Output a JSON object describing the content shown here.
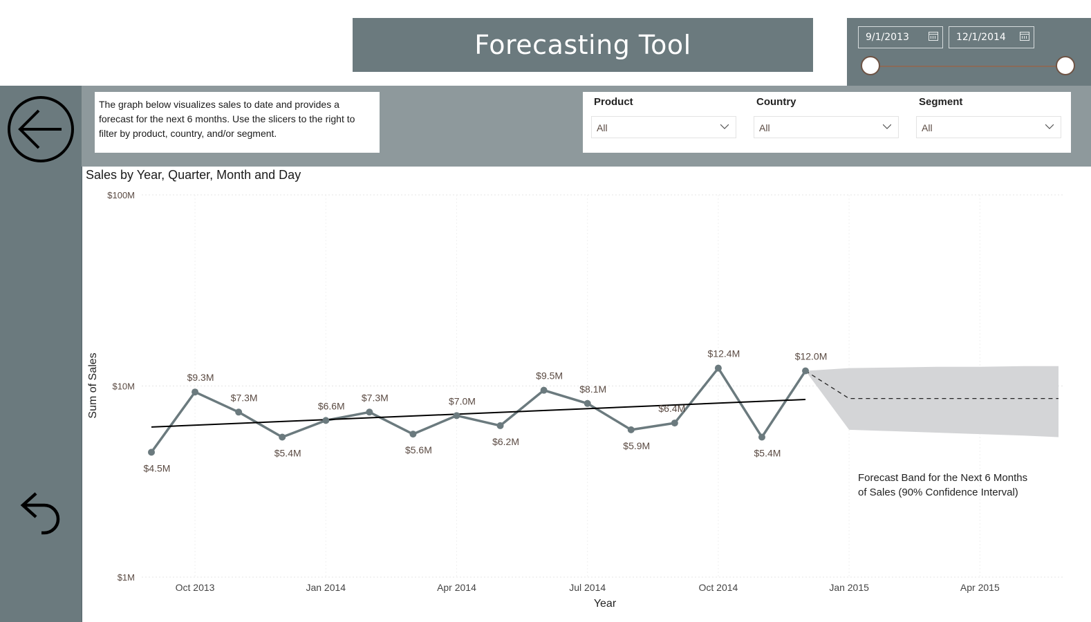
{
  "header": {
    "title": "Forecasting Tool"
  },
  "date_slicer": {
    "start_date": "9/1/2013",
    "end_date": "12/1/2014"
  },
  "description": "The graph below visualizes sales to date and provides a forecast for the next 6 months. Use the slicers to the right to filter by product, country, and/or segment.",
  "slicers": [
    {
      "label": "Product",
      "value": "All"
    },
    {
      "label": "Country",
      "value": "All"
    },
    {
      "label": "Segment",
      "value": "All"
    }
  ],
  "nav": {
    "back_icon": "circle-arrow-left-icon",
    "undo_icon": "undo-arrow-icon"
  },
  "colors": {
    "header_bg": "#6b7a7e",
    "band_bg": "#8e999c",
    "line": "#6b7a7e",
    "trend": "#000000",
    "forecast_band": "#d4d5d7",
    "label_text": "#5a4a42"
  },
  "chart_data": {
    "type": "line",
    "title": "Sales by Year, Quarter, Month and Day",
    "xlabel": "Year",
    "ylabel": "Sum of Sales",
    "yscale": "log",
    "ylim": [
      1000000,
      100000000
    ],
    "y_ticks": [
      "$100M",
      "$10M",
      "$1M"
    ],
    "x_ticks": [
      "Oct 2013",
      "Jan 2014",
      "Apr 2014",
      "Jul 2014",
      "Oct 2014",
      "Jan 2015",
      "Apr 2015"
    ],
    "grid": true,
    "legend": null,
    "series": [
      {
        "name": "Sum of Sales",
        "x": [
          "Sep 2013",
          "Oct 2013",
          "Nov 2013",
          "Dec 2013",
          "Jan 2014",
          "Feb 2014",
          "Mar 2014",
          "Apr 2014",
          "May 2014",
          "Jun 2014",
          "Jul 2014",
          "Aug 2014",
          "Sep 2014",
          "Oct 2014",
          "Nov 2014",
          "Dec 2014"
        ],
        "values": [
          4.5,
          9.3,
          7.3,
          5.4,
          6.6,
          7.3,
          5.6,
          7.0,
          6.2,
          9.5,
          8.1,
          5.9,
          6.4,
          12.4,
          5.4,
          12.0
        ],
        "labels": [
          "$4.5M",
          "$9.3M",
          "$7.3M",
          "$5.4M",
          "$6.6M",
          "$7.3M",
          "$5.6M",
          "$7.0M",
          "$6.2M",
          "$9.5M",
          "$8.1M",
          "$5.9M",
          "$6.4M",
          "$12.4M",
          "$5.4M",
          "$12.0M"
        ],
        "unit": "$M"
      },
      {
        "name": "Trend line",
        "x": [
          "Sep 2013",
          "Dec 2014"
        ],
        "values": [
          6.1,
          8.5
        ],
        "unit": "$M"
      },
      {
        "name": "Forecast",
        "x": [
          "Dec 2014",
          "Jan 2015",
          "Feb 2015",
          "Mar 2015",
          "Apr 2015",
          "May 2015",
          "Jun 2015"
        ],
        "values": [
          12.0,
          8.6,
          8.6,
          8.6,
          8.6,
          8.6,
          8.6
        ],
        "upper": [
          12.0,
          12.4,
          12.5,
          12.6,
          12.6,
          12.7,
          12.7
        ],
        "lower": [
          12.0,
          5.9,
          5.8,
          5.7,
          5.6,
          5.5,
          5.4
        ],
        "unit": "$M"
      }
    ],
    "annotations": [
      "Forecast Band for the Next 6 Months of Sales (90% Confidence Interval)"
    ]
  }
}
